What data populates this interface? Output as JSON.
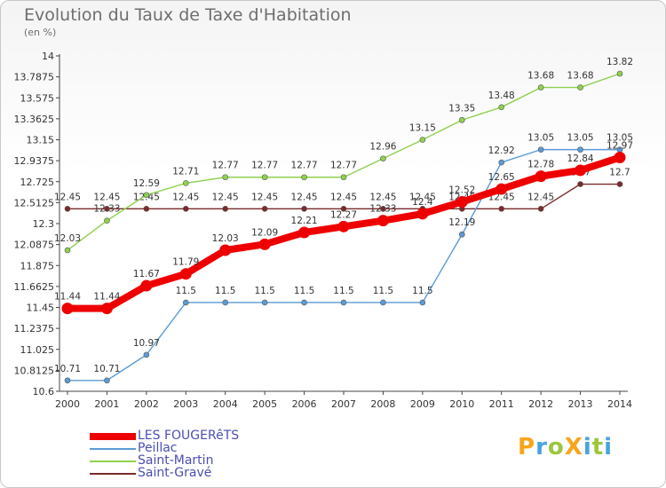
{
  "title": "Evolution du Taux de Taxe d'Habitation",
  "subtitle": "(en %)",
  "logo": {
    "text": "ProXiti",
    "letters": [
      "P",
      "r",
      "o",
      "X",
      "i",
      "t",
      "i"
    ],
    "letter_colors": [
      "#f7a51c",
      "#4aa3df",
      "#9cc63b",
      "#f7a51c",
      "#4aa3df",
      "#9cc63b",
      "#4aa3df"
    ]
  },
  "chart_data": {
    "type": "line",
    "title": "Evolution du Taux de Taxe d'Habitation",
    "ylabel": "(en %)",
    "xlabel": "",
    "x": [
      "2000",
      "2001",
      "2002",
      "2003",
      "2004",
      "2005",
      "2006",
      "2007",
      "2008",
      "2009",
      "2010",
      "2011",
      "2012",
      "2013",
      "2014"
    ],
    "ylim": [
      10.6,
      14
    ],
    "yticks": [
      10.6,
      10.8125,
      11.025,
      11.2375,
      11.45,
      11.6625,
      11.875,
      12.0875,
      12.3,
      12.5125,
      12.725,
      12.9375,
      13.15,
      13.3625,
      13.575,
      13.7875,
      14
    ],
    "ytick_labels": [
      "10.6",
      "10.8125",
      "11.025",
      "11.2375",
      "11.45",
      "11.6625",
      "11.875",
      "12.0875",
      "12.3",
      "12.5125",
      "12.725",
      "12.9375",
      "13.15",
      "13.3625",
      "13.575",
      "13.7875",
      "14"
    ],
    "grid": "none",
    "legend_position": "bottom-left",
    "series": [
      {
        "name": "Saint-Gravé",
        "color": "#7a2a2a",
        "values": [
          12.45,
          12.45,
          12.45,
          12.45,
          12.45,
          12.45,
          12.45,
          12.45,
          12.45,
          12.45,
          12.45,
          12.45,
          12.45,
          12.7,
          12.7
        ],
        "labels": [
          "12.45",
          "12.45",
          "12.45",
          "12.45",
          "12.45",
          "12.45",
          "12.45",
          "12.45",
          "12.45",
          "12.45",
          "12.45",
          "12.45",
          "12.45",
          "12.7",
          "12.7"
        ]
      },
      {
        "name": "Peillac",
        "color": "#5b9bd5",
        "values": [
          10.71,
          10.71,
          10.97,
          11.5,
          11.5,
          11.5,
          11.5,
          11.5,
          11.5,
          11.5,
          12.19,
          12.92,
          13.05,
          13.05,
          13.05
        ],
        "labels": [
          "10.71",
          "10.71",
          "10.97",
          "11.5",
          "11.5",
          "11.5",
          "11.5",
          "11.5",
          "11.5",
          "11.5",
          "12.19",
          "12.92",
          "13.05",
          "13.05",
          "13.05"
        ]
      },
      {
        "name": "Saint-Martin",
        "color": "#8fd14f",
        "values": [
          12.03,
          12.33,
          12.59,
          12.71,
          12.77,
          12.77,
          12.77,
          12.77,
          12.96,
          13.15,
          13.35,
          13.48,
          13.68,
          13.68,
          13.82
        ],
        "labels": [
          "12.03",
          "12.33",
          "12.59",
          "12.71",
          "12.77",
          "12.77",
          "12.77",
          "12.77",
          "12.96",
          "13.15",
          "13.35",
          "13.48",
          "13.68",
          "13.68",
          "13.82"
        ]
      },
      {
        "name": "LES FOUGERêTS",
        "color": "#ee0000",
        "values": [
          11.44,
          11.44,
          11.67,
          11.79,
          12.03,
          12.09,
          12.21,
          12.27,
          12.33,
          12.4,
          12.52,
          12.65,
          12.78,
          12.84,
          12.97
        ],
        "labels": [
          "11.44",
          "11.44",
          "11.67",
          "11.79",
          "12.03",
          "12.09",
          "12.21",
          "12.27",
          "12.33",
          "12.4",
          "12.52",
          "12.65",
          "12.78",
          "12.84",
          "12.97"
        ]
      }
    ]
  },
  "legend": [
    {
      "label": "LES FOUGERêTS",
      "color": "#ee0000"
    },
    {
      "label": "Peillac",
      "color": "#5b9bd5"
    },
    {
      "label": "Saint-Martin",
      "color": "#8fd14f"
    },
    {
      "label": "Saint-Gravé",
      "color": "#7a2a2a"
    }
  ]
}
